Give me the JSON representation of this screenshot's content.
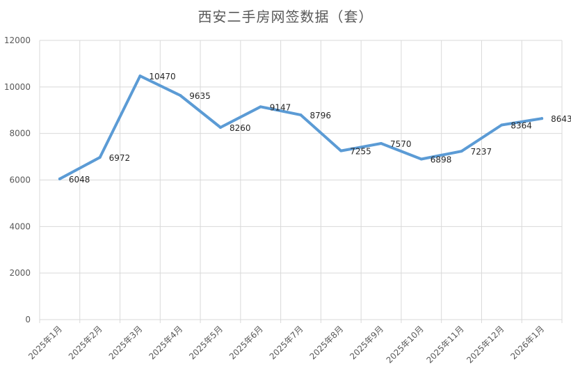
{
  "chart_data": {
    "type": "line",
    "title": "西安二手房网签数据（套）",
    "categories": [
      "2025年1月",
      "2025年2月",
      "2025年3月",
      "2025年4月",
      "2025年5月",
      "2025年6月",
      "2025年7月",
      "2025年8月",
      "2025年9月",
      "2025年10月",
      "2025年11月",
      "2025年12月",
      "2026年1月"
    ],
    "series": [
      {
        "values": [
          6048,
          6972,
          10470,
          9635,
          8260,
          9147,
          8796,
          7255,
          7570,
          6898,
          7237,
          8364,
          8643
        ]
      }
    ],
    "ylim": [
      0,
      12000
    ],
    "yticks": [
      "0",
      "2000",
      "4000",
      "6000",
      "8000",
      "10000",
      "12000"
    ],
    "grid": true,
    "line_color": "#5B9BD5",
    "grid_color": "#D9D9D9"
  }
}
